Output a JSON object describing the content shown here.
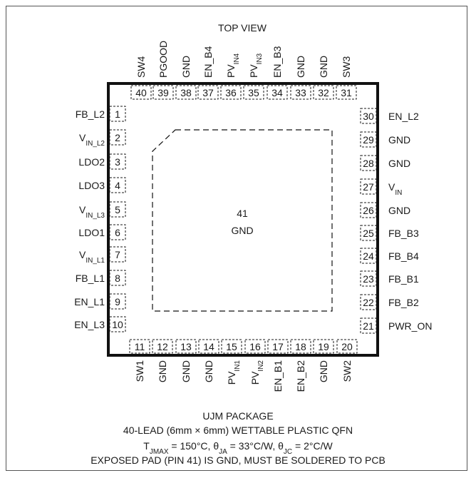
{
  "view_title": "TOP VIEW",
  "exposed_pad": {
    "number": "41",
    "name": "GND"
  },
  "pins": {
    "left": [
      {
        "num": "1",
        "name": "FB_L2"
      },
      {
        "num": "2",
        "name": "V",
        "sub": "IN_L2"
      },
      {
        "num": "3",
        "name": "LDO2"
      },
      {
        "num": "4",
        "name": "LDO3"
      },
      {
        "num": "5",
        "name": "V",
        "sub": "IN_L3"
      },
      {
        "num": "6",
        "name": "LDO1"
      },
      {
        "num": "7",
        "name": "V",
        "sub": "IN_L1"
      },
      {
        "num": "8",
        "name": "FB_L1"
      },
      {
        "num": "9",
        "name": "EN_L1"
      },
      {
        "num": "10",
        "name": "EN_L3"
      }
    ],
    "bottom": [
      {
        "num": "11",
        "name": "SW1"
      },
      {
        "num": "12",
        "name": "GND"
      },
      {
        "num": "13",
        "name": "GND"
      },
      {
        "num": "14",
        "name": "GND"
      },
      {
        "num": "15",
        "name": "PV",
        "sub": "IN1"
      },
      {
        "num": "16",
        "name": "PV",
        "sub": "IN2"
      },
      {
        "num": "17",
        "name": "EN_B1"
      },
      {
        "num": "18",
        "name": "EN_B2"
      },
      {
        "num": "19",
        "name": "GND"
      },
      {
        "num": "20",
        "name": "SW2"
      }
    ],
    "right": [
      {
        "num": "30",
        "name": "EN_L2"
      },
      {
        "num": "29",
        "name": "GND"
      },
      {
        "num": "28",
        "name": "GND"
      },
      {
        "num": "27",
        "name": "V",
        "sub": "IN"
      },
      {
        "num": "26",
        "name": "GND"
      },
      {
        "num": "25",
        "name": "FB_B3"
      },
      {
        "num": "24",
        "name": "FB_B4"
      },
      {
        "num": "23",
        "name": "FB_B1"
      },
      {
        "num": "22",
        "name": "FB_B2"
      },
      {
        "num": "21",
        "name": "PWR_ON"
      }
    ],
    "top": [
      {
        "num": "40",
        "name": "SW4"
      },
      {
        "num": "39",
        "name": "PGOOD"
      },
      {
        "num": "38",
        "name": "GND"
      },
      {
        "num": "37",
        "name": "EN_B4"
      },
      {
        "num": "36",
        "name": "PV",
        "sub": "IN4"
      },
      {
        "num": "35",
        "name": "PV",
        "sub": "IN3"
      },
      {
        "num": "34",
        "name": "EN_B3"
      },
      {
        "num": "33",
        "name": "GND"
      },
      {
        "num": "32",
        "name": "GND"
      },
      {
        "num": "31",
        "name": "SW3"
      }
    ]
  },
  "caption": {
    "package": "UJM PACKAGE",
    "description": "40-LEAD (6mm × 6mm) WETTABLE PLASTIC QFN",
    "thermal": [
      {
        "t": "T"
      },
      {
        "t": "JMAX",
        "sub": true
      },
      {
        "t": " = 150°C, θ"
      },
      {
        "t": "JA",
        "sub": true
      },
      {
        "t": " = 33°C/W, θ"
      },
      {
        "t": "JC",
        "sub": true
      },
      {
        "t": " = 2°C/W"
      }
    ],
    "note": "EXPOSED PAD (PIN 41) IS GND, MUST BE SOLDERED TO PCB"
  }
}
